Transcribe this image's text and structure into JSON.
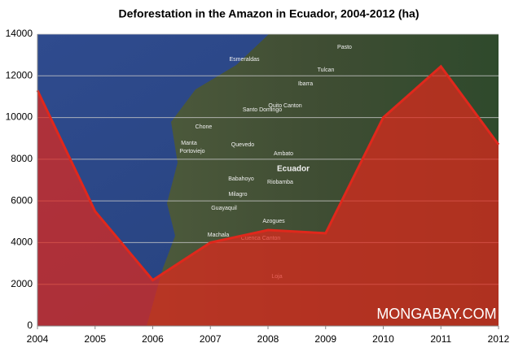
{
  "chart_data": {
    "type": "area",
    "title": "Deforestation in the Amazon in Ecuador, 2004-2012 (ha)",
    "x": [
      2004,
      2005,
      2006,
      2007,
      2008,
      2009,
      2010,
      2011,
      2012
    ],
    "values": [
      11300,
      5500,
      2200,
      4000,
      4600,
      4450,
      10000,
      12450,
      8700
    ],
    "color": "#e0281c",
    "xlim": [
      2004,
      2012
    ],
    "xticks": [
      2004,
      2005,
      2006,
      2007,
      2008,
      2009,
      2010,
      2011,
      2012
    ],
    "ylim": [
      0,
      14000
    ],
    "yticks": [
      0,
      2000,
      4000,
      6000,
      8000,
      10000,
      12000,
      14000
    ],
    "grid": true,
    "watermark": "MONGABAY.COM",
    "map_labels": [
      "Esmeraldas",
      "Pasto",
      "Tulcan",
      "Ibarra",
      "Quito Canton",
      "Santo Domingo",
      "Chone",
      "Quevedo",
      "Manta",
      "Portoviejo",
      "Ambato",
      "Ecuador",
      "Riobamba",
      "Babahoyo",
      "Milagro",
      "Guayaquil",
      "Azogues",
      "Machala",
      "Cuenca Canton",
      "Loja"
    ]
  }
}
